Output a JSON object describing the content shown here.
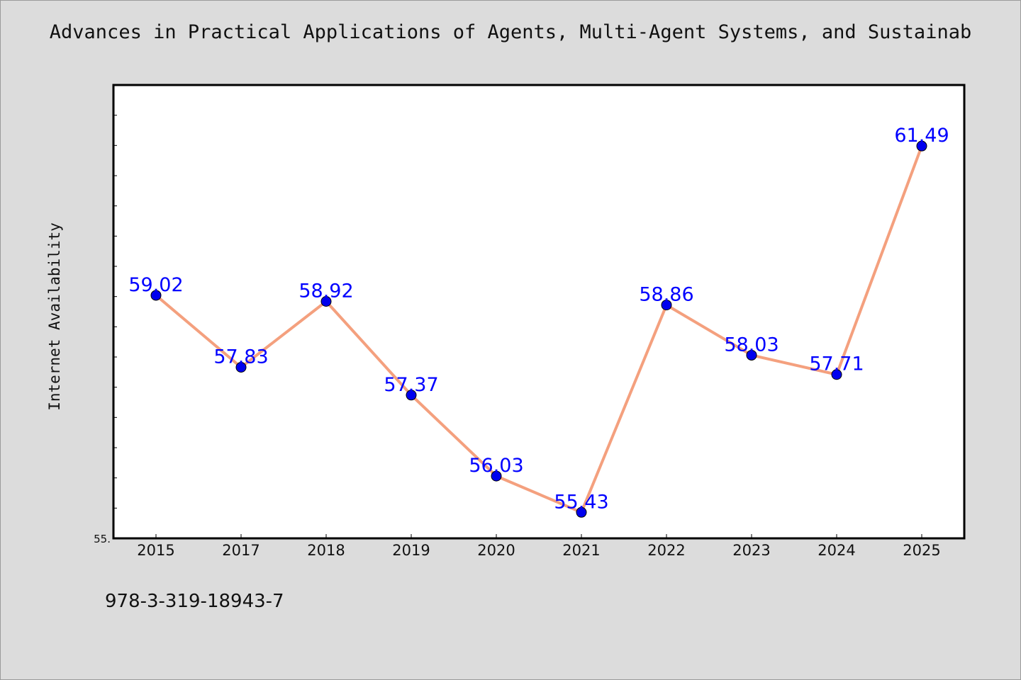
{
  "chart_data": {
    "type": "line",
    "title": "Advances in Practical Applications of Agents, Multi-Agent Systems, and Sustainab",
    "xlabel": "",
    "ylabel": "Internet Availability",
    "categories": [
      "2015",
      "2017",
      "2018",
      "2019",
      "2020",
      "2021",
      "2022",
      "2023",
      "2024",
      "2025"
    ],
    "series": [
      {
        "values": [
          59.02,
          57.83,
          58.92,
          57.37,
          56.03,
          55.43,
          58.86,
          58.03,
          57.71,
          61.49
        ]
      }
    ],
    "data_labels": [
      "59.02",
      "57.83",
      "58.92",
      "57.37",
      "56.03",
      "55.43",
      "58.86",
      "58.03",
      "57.71",
      "61.49"
    ],
    "ylim": [
      55.0,
      62.5
    ],
    "ytick_labels": [
      "55."
    ],
    "grid": false,
    "legend": "none",
    "colors": {
      "line": "#f4a07e",
      "marker": "#0000ee",
      "data_label": "#0000ff",
      "background": "#dcdcdc",
      "plot_background": "#ffffff"
    }
  },
  "footnote": "978-3-319-18943-7"
}
